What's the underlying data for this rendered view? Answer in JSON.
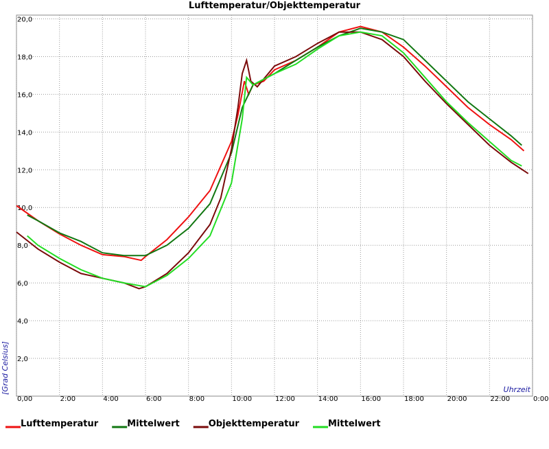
{
  "chart_data": {
    "type": "line",
    "title": "Lufttemperatur/Objekttemperatur",
    "x_label": "Uhrzeit",
    "y_label": "[Grad Celsius]",
    "grid": true,
    "xlim": [
      0,
      24
    ],
    "ylim": [
      0,
      20.2
    ],
    "xticks": [
      {
        "value": 0,
        "label": "0,00"
      },
      {
        "value": 2,
        "label": "2:00"
      },
      {
        "value": 4,
        "label": "4:00"
      },
      {
        "value": 6,
        "label": "6:00"
      },
      {
        "value": 8,
        "label": "8:00"
      },
      {
        "value": 10,
        "label": "10:00"
      },
      {
        "value": 12,
        "label": "12:00"
      },
      {
        "value": 14,
        "label": "14:00"
      },
      {
        "value": 16,
        "label": "16:00"
      },
      {
        "value": 18,
        "label": "18:00"
      },
      {
        "value": 20,
        "label": "20:00"
      },
      {
        "value": 22,
        "label": "22:00"
      },
      {
        "value": 24,
        "label": "0:00"
      }
    ],
    "yticks": [
      {
        "value": 2,
        "label": "2,0"
      },
      {
        "value": 4,
        "label": "4,0"
      },
      {
        "value": 6,
        "label": "6,0"
      },
      {
        "value": 8,
        "label": "8,0"
      },
      {
        "value": 10,
        "label": "10,0"
      },
      {
        "value": 12,
        "label": "12,0"
      },
      {
        "value": 14,
        "label": "14,0"
      },
      {
        "value": 16,
        "label": "16,0"
      },
      {
        "value": 18,
        "label": "18,0"
      },
      {
        "value": 20,
        "label": "20,0"
      }
    ],
    "series": [
      {
        "name": "Lufttemperatur",
        "color": "#ee1111",
        "x": [
          0,
          1,
          2,
          3,
          4,
          5,
          5.8,
          6,
          7,
          8,
          8.5,
          9,
          9.5,
          10,
          10.3,
          10.6,
          10.8,
          11,
          11.5,
          12,
          13,
          14,
          15,
          16,
          17,
          18,
          19,
          20,
          21,
          22,
          23,
          23.6
        ],
        "values": [
          10.1,
          9.3,
          8.6,
          8.0,
          7.5,
          7.4,
          7.2,
          7.4,
          8.3,
          9.5,
          10.2,
          10.9,
          12.2,
          13.5,
          14.9,
          16.7,
          16.0,
          16.5,
          16.7,
          17.3,
          17.8,
          18.5,
          19.3,
          19.6,
          19.3,
          18.5,
          17.5,
          16.4,
          15.3,
          14.4,
          13.6,
          13.0
        ]
      },
      {
        "name": "Mittelwert",
        "color": "#117711",
        "x": [
          0.5,
          1,
          2,
          3,
          4,
          5,
          6,
          7,
          8,
          9,
          10,
          10.5,
          11,
          12,
          13,
          14,
          15,
          16,
          17,
          18,
          19,
          20,
          21,
          22,
          23,
          23.5
        ],
        "values": [
          9.6,
          9.3,
          8.65,
          8.2,
          7.6,
          7.45,
          7.45,
          8.0,
          8.9,
          10.2,
          12.9,
          15.3,
          16.5,
          17.1,
          17.8,
          18.5,
          19.1,
          19.5,
          19.3,
          18.9,
          17.8,
          16.7,
          15.6,
          14.7,
          13.8,
          13.3
        ]
      },
      {
        "name": "Objekttemperatur",
        "color": "#7a0a0a",
        "x": [
          0,
          1,
          2,
          3,
          4,
          5,
          5.7,
          6,
          7,
          8,
          9,
          9.5,
          10,
          10.3,
          10.5,
          10.7,
          10.9,
          11.2,
          12,
          13,
          14,
          15,
          16,
          17,
          18,
          19,
          20,
          21,
          22,
          23,
          23.8
        ],
        "values": [
          8.7,
          7.8,
          7.1,
          6.5,
          6.25,
          6.0,
          5.7,
          5.8,
          6.5,
          7.6,
          9.1,
          10.5,
          13.1,
          15.3,
          17.1,
          17.8,
          16.7,
          16.4,
          17.5,
          18.0,
          18.7,
          19.3,
          19.3,
          18.9,
          18.0,
          16.7,
          15.5,
          14.4,
          13.3,
          12.4,
          11.8
        ]
      },
      {
        "name": "Mittelwert",
        "color": "#22dd22",
        "x": [
          0.5,
          1,
          2,
          3,
          4,
          5,
          6,
          7,
          8,
          9,
          10,
          10.5,
          10.7,
          11,
          12,
          13,
          14,
          15,
          16,
          17,
          18,
          19,
          20,
          21,
          22,
          23,
          23.5
        ],
        "values": [
          8.5,
          8.0,
          7.3,
          6.7,
          6.25,
          6.0,
          5.8,
          6.4,
          7.3,
          8.5,
          11.3,
          14.7,
          16.9,
          16.5,
          17.1,
          17.6,
          18.4,
          19.1,
          19.3,
          19.1,
          18.2,
          16.9,
          15.6,
          14.5,
          13.5,
          12.5,
          12.2
        ]
      }
    ]
  }
}
